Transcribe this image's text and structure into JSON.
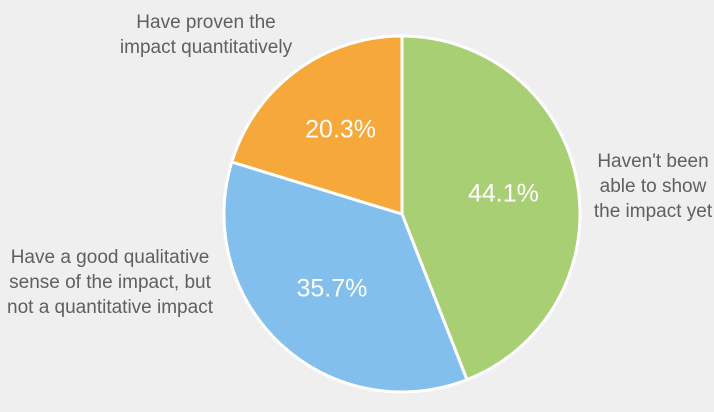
{
  "chart_data": {
    "type": "pie",
    "title": "",
    "slices": [
      {
        "label": "Haven't been able to show the impact yet",
        "value": 44.1,
        "value_label": "44.1%",
        "color": "#a9cf74"
      },
      {
        "label": "Have a good qualitative sense of the impact, but not a quantitative impact",
        "value": 35.7,
        "value_label": "35.7%",
        "color": "#82bfed"
      },
      {
        "label": "Have proven the impact quantitatively",
        "value": 20.3,
        "value_label": "20.3%",
        "color": "#f6a93a"
      }
    ]
  }
}
